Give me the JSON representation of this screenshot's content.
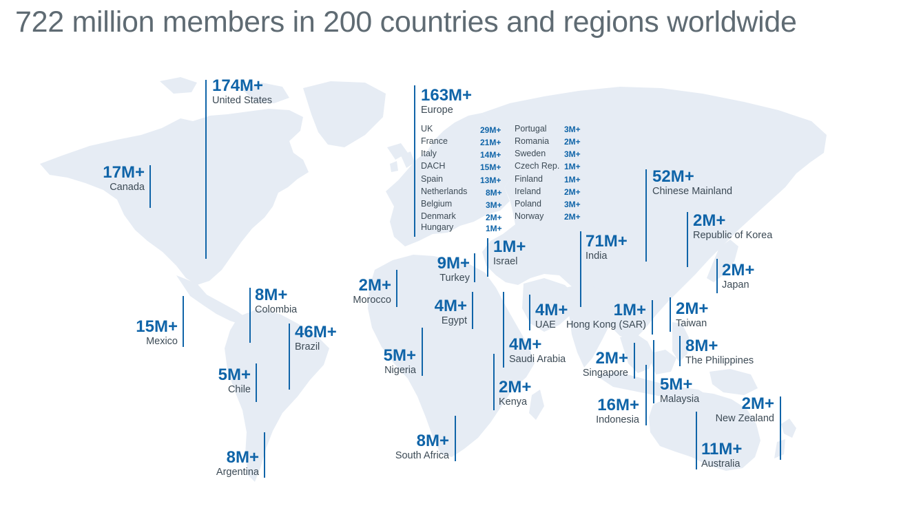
{
  "title": "722 million members in 200 countries and regions worldwide",
  "map_style": {
    "land_color": "#e6ecf4",
    "accent_color": "#0f64a8",
    "label_color": "#3c4a55"
  },
  "regions": [
    {
      "id": "united-states",
      "value": "174M+",
      "name": "United States"
    },
    {
      "id": "canada",
      "value": "17M+",
      "name": "Canada"
    },
    {
      "id": "mexico",
      "value": "15M+",
      "name": "Mexico"
    },
    {
      "id": "colombia",
      "value": "8M+",
      "name": "Colombia"
    },
    {
      "id": "brazil",
      "value": "46M+",
      "name": "Brazil"
    },
    {
      "id": "chile",
      "value": "5M+",
      "name": "Chile"
    },
    {
      "id": "argentina",
      "value": "8M+",
      "name": "Argentina"
    },
    {
      "id": "europe",
      "value": "163M+",
      "name": "Europe"
    },
    {
      "id": "morocco",
      "value": "2M+",
      "name": "Morocco"
    },
    {
      "id": "turkey",
      "value": "9M+",
      "name": "Turkey"
    },
    {
      "id": "israel",
      "value": "1M+",
      "name": "Israel"
    },
    {
      "id": "egypt",
      "value": "4M+",
      "name": "Egypt"
    },
    {
      "id": "uae",
      "value": "4M+",
      "name": "UAE"
    },
    {
      "id": "saudi-arabia",
      "value": "4M+",
      "name": "Saudi Arabia"
    },
    {
      "id": "nigeria",
      "value": "5M+",
      "name": "Nigeria"
    },
    {
      "id": "kenya",
      "value": "2M+",
      "name": "Kenya"
    },
    {
      "id": "south-africa",
      "value": "8M+",
      "name": "South Africa"
    },
    {
      "id": "india",
      "value": "71M+",
      "name": "India"
    },
    {
      "id": "chinese-mainland",
      "value": "52M+",
      "name": "Chinese Mainland"
    },
    {
      "id": "korea",
      "value": "2M+",
      "name": "Republic of Korea"
    },
    {
      "id": "japan",
      "value": "2M+",
      "name": "Japan"
    },
    {
      "id": "hong-kong",
      "value": "1M+",
      "name": "Hong Kong (SAR)"
    },
    {
      "id": "taiwan",
      "value": "2M+",
      "name": "Taiwan"
    },
    {
      "id": "philippines",
      "value": "8M+",
      "name": "The Philippines"
    },
    {
      "id": "singapore",
      "value": "2M+",
      "name": "Singapore"
    },
    {
      "id": "malaysia",
      "value": "5M+",
      "name": "Malaysia"
    },
    {
      "id": "indonesia",
      "value": "16M+",
      "name": "Indonesia"
    },
    {
      "id": "new-zealand",
      "value": "2M+",
      "name": "New Zealand"
    },
    {
      "id": "australia",
      "value": "11M+",
      "name": "Australia"
    }
  ],
  "europe_breakdown": {
    "left": [
      {
        "name": "UK",
        "value": "29M+"
      },
      {
        "name": "France",
        "value": "21M+"
      },
      {
        "name": "Italy",
        "value": "14M+"
      },
      {
        "name": "DACH",
        "value": "15M+"
      },
      {
        "name": "Spain",
        "value": "13M+"
      },
      {
        "name": "Netherlands",
        "value": "8M+"
      },
      {
        "name": "Belgium",
        "value": "3M+"
      },
      {
        "name": "Denmark",
        "value": "2M+"
      },
      {
        "name": "Hungary",
        "value": "1M+"
      }
    ],
    "right": [
      {
        "name": "Portugal",
        "value": "3M+"
      },
      {
        "name": "Romania",
        "value": "2M+"
      },
      {
        "name": "Sweden",
        "value": "3M+"
      },
      {
        "name": "Czech Rep.",
        "value": "1M+"
      },
      {
        "name": "Finland",
        "value": "1M+"
      },
      {
        "name": "Ireland",
        "value": "2M+"
      },
      {
        "name": "Poland",
        "value": "3M+"
      },
      {
        "name": "Norway",
        "value": "2M+"
      }
    ]
  }
}
